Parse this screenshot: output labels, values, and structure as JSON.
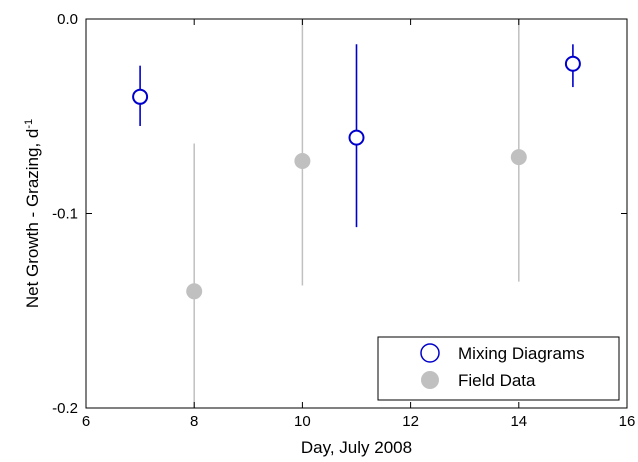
{
  "chart_data": {
    "type": "scatter",
    "xlabel": "Day, July 2008",
    "ylabel_main": "Net Growth - Grazing, d",
    "ylabel_sup": "-1",
    "xlim": [
      6,
      16
    ],
    "ylim": [
      -0.2,
      0.0
    ],
    "xticks": [
      6,
      8,
      10,
      12,
      14,
      16
    ],
    "xtick_labels": [
      "6",
      "8",
      "10",
      "12",
      "14",
      "16"
    ],
    "yticks": [
      -0.2,
      -0.1,
      0.0
    ],
    "ytick_labels": [
      "-0.2",
      "-0.1",
      "0.0"
    ],
    "legend_position": "bottom-right",
    "series": [
      {
        "name": "Mixing Diagrams",
        "marker": "open-circle",
        "color": "#0000cc",
        "points": [
          {
            "x": 7,
            "y": -0.04,
            "err_low": -0.055,
            "err_high": -0.024
          },
          {
            "x": 11,
            "y": -0.061,
            "err_low": -0.107,
            "err_high": -0.013
          },
          {
            "x": 15,
            "y": -0.023,
            "err_low": -0.035,
            "err_high": -0.013
          }
        ]
      },
      {
        "name": "Field Data",
        "marker": "filled-circle",
        "color": "#c0c0c0",
        "points": [
          {
            "x": 8,
            "y": -0.14,
            "err_low": -0.2,
            "err_high": -0.064
          },
          {
            "x": 10,
            "y": -0.073,
            "err_low": -0.137,
            "err_high": 0.0
          },
          {
            "x": 14,
            "y": -0.071,
            "err_low": -0.135,
            "err_high": 0.0
          }
        ]
      }
    ]
  }
}
